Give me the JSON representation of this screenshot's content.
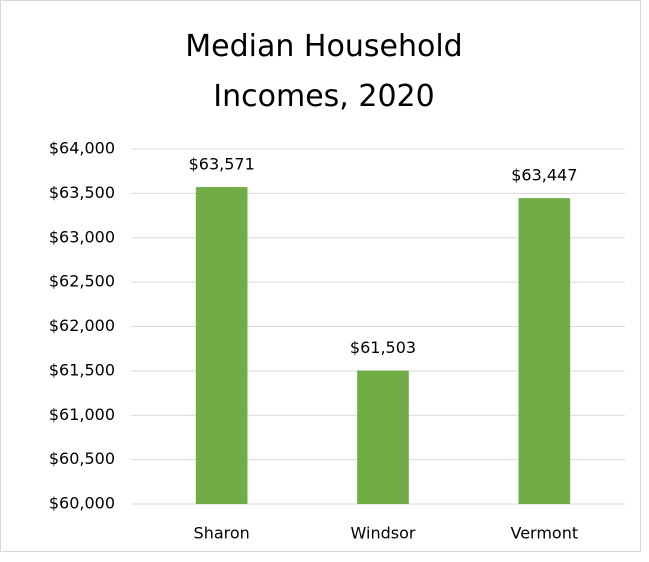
{
  "chart_data": {
    "type": "bar",
    "title": "Median Household Incomes, 2020",
    "categories": [
      "Sharon",
      "Windsor",
      "Vermont"
    ],
    "values": [
      63571,
      61503,
      63447
    ],
    "value_labels": [
      "$63,571",
      "$61,503",
      "$63,447"
    ],
    "color": "#70ad47",
    "ylim": [
      60000,
      64000
    ],
    "yticks": [
      {
        "value": 60000,
        "label": "$60,000"
      },
      {
        "value": 60500,
        "label": "$60,500"
      },
      {
        "value": 61000,
        "label": "$61,000"
      },
      {
        "value": 61500,
        "label": "$61,500"
      },
      {
        "value": 62000,
        "label": "$62,000"
      },
      {
        "value": 62500,
        "label": "$62,500"
      },
      {
        "value": 63000,
        "label": "$63,000"
      },
      {
        "value": 63500,
        "label": "$63,500"
      },
      {
        "value": 64000,
        "label": "$64,000"
      }
    ],
    "grid": true
  }
}
